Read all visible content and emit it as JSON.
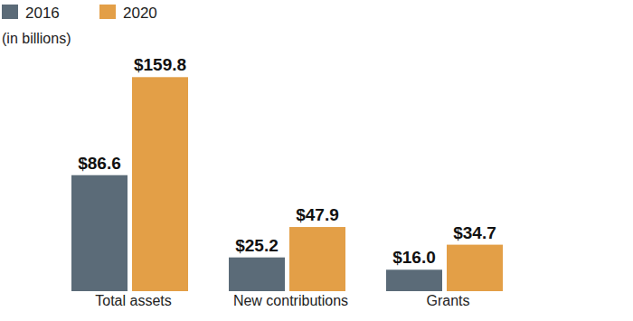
{
  "chart_data": {
    "type": "bar",
    "subtitle": "(in billions)",
    "categories": [
      "Total assets",
      "New contributions",
      "Grants"
    ],
    "series": [
      {
        "name": "2016",
        "color": "#5b6b78",
        "values": [
          86.6,
          25.2,
          16.0
        ],
        "value_labels": [
          "$86.6",
          "$25.2",
          "$16.0"
        ]
      },
      {
        "name": "2020",
        "color": "#e39f47",
        "values": [
          159.8,
          47.9,
          34.7
        ],
        "value_labels": [
          "$159.8",
          "$47.9",
          "$34.7"
        ]
      }
    ],
    "ylim": [
      0,
      160
    ],
    "grid": false,
    "legend": "top-left",
    "data_labels": true,
    "tick_labels": "x"
  }
}
